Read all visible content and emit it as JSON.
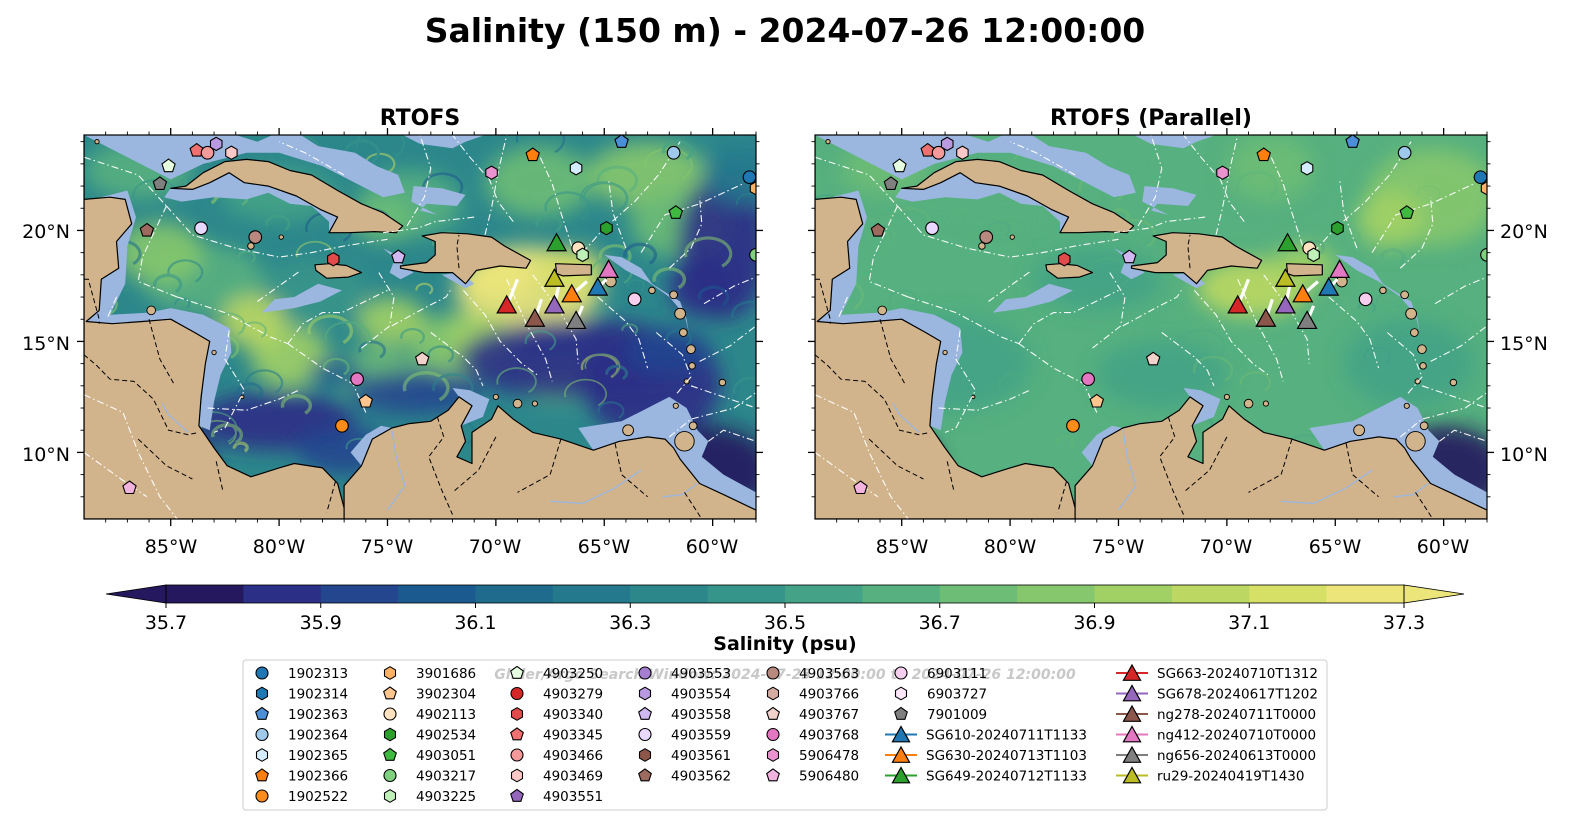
{
  "figure": {
    "title": "Salinity (150 m) - 2024-07-26 12:00:00",
    "watermark": "Glider/Argo Search Window: 2024-07-25 12:00:00 to 2024-07-26 12:00:00"
  },
  "panels": [
    {
      "title": "RTOFS",
      "variant": "main"
    },
    {
      "title": "RTOFS (Parallel)",
      "variant": "parallel"
    }
  ],
  "axes": {
    "lon_ticks": [
      "85°W",
      "80°W",
      "75°W",
      "70°W",
      "65°W",
      "60°W"
    ],
    "lat_ticks": [
      "20°N",
      "15°N",
      "10°N"
    ]
  },
  "colorbar": {
    "label": "Salinity (psu)",
    "min": 35.7,
    "max": 37.3,
    "step": 0.1,
    "tick_labels": [
      "35.7",
      "35.9",
      "36.1",
      "36.3",
      "36.5",
      "36.7",
      "36.9",
      "37.1",
      "37.3"
    ],
    "colors": [
      "#26185e",
      "#2b2f86",
      "#23468f",
      "#1b5a8e",
      "#1f6b8e",
      "#25798d",
      "#2c878b",
      "#36958a",
      "#44a386",
      "#56b07f",
      "#6dbd76",
      "#86c76d",
      "#a1d065",
      "#bcd862",
      "#d6df66",
      "#ece57a"
    ]
  },
  "legend": {
    "columns": [
      [
        {
          "label": "1902313",
          "marker": "circle",
          "color": "#1f77b4"
        },
        {
          "label": "1902314",
          "marker": "hexagon",
          "color": "#1f77b4"
        },
        {
          "label": "1902363",
          "marker": "pentagon",
          "color": "#4a8fd8"
        },
        {
          "label": "1902364",
          "marker": "circle",
          "color": "#9ec9ea"
        },
        {
          "label": "1902365",
          "marker": "hexagon",
          "color": "#d4ecff"
        },
        {
          "label": "1902366",
          "marker": "pentagon",
          "color": "#ff7f0e"
        },
        {
          "label": "1902522",
          "marker": "circle",
          "color": "#ff8c1a"
        }
      ],
      [
        {
          "label": "3901686",
          "marker": "hexagon",
          "color": "#ffb266"
        },
        {
          "label": "3902304",
          "marker": "pentagon",
          "color": "#ffc58f"
        },
        {
          "label": "4902113",
          "marker": "circle",
          "color": "#ffe2c0"
        },
        {
          "label": "4902534",
          "marker": "hexagon",
          "color": "#2ca02c"
        },
        {
          "label": "4903051",
          "marker": "pentagon",
          "color": "#3fb93f"
        },
        {
          "label": "4903217",
          "marker": "circle",
          "color": "#7fd07f"
        },
        {
          "label": "4903225",
          "marker": "hexagon",
          "color": "#bff0b8"
        }
      ],
      [
        {
          "label": "4903250",
          "marker": "pentagon",
          "color": "#e6ffe0"
        },
        {
          "label": "4903279",
          "marker": "circle",
          "color": "#d62728"
        },
        {
          "label": "4903340",
          "marker": "hexagon",
          "color": "#e24b4b"
        },
        {
          "label": "4903345",
          "marker": "pentagon",
          "color": "#ee7070"
        },
        {
          "label": "4903466",
          "marker": "circle",
          "color": "#f59a9a"
        },
        {
          "label": "4903469",
          "marker": "hexagon",
          "color": "#fbc8c8"
        },
        {
          "label": "4903551",
          "marker": "pentagon",
          "color": "#9467bd"
        }
      ],
      [
        {
          "label": "4903553",
          "marker": "circle",
          "color": "#a47fd0"
        },
        {
          "label": "4903554",
          "marker": "hexagon",
          "color": "#b99ae0"
        },
        {
          "label": "4903558",
          "marker": "pentagon",
          "color": "#d0b8f0"
        },
        {
          "label": "4903559",
          "marker": "circle",
          "color": "#ead9ff"
        },
        {
          "label": "4903561",
          "marker": "hexagon",
          "color": "#8c564b"
        },
        {
          "label": "4903562",
          "marker": "pentagon",
          "color": "#9c6a5e"
        }
      ],
      [
        {
          "label": "4903563",
          "marker": "circle",
          "color": "#b88a7f"
        },
        {
          "label": "4903766",
          "marker": "hexagon",
          "color": "#d4aca2"
        },
        {
          "label": "4903767",
          "marker": "pentagon",
          "color": "#f0d2ca"
        },
        {
          "label": "4903768",
          "marker": "circle",
          "color": "#e377c2"
        },
        {
          "label": "5906478",
          "marker": "hexagon",
          "color": "#ea93cf"
        },
        {
          "label": "5906480",
          "marker": "pentagon",
          "color": "#f2b3df"
        }
      ],
      [
        {
          "label": "6903111",
          "marker": "circle",
          "color": "#f7cfee"
        },
        {
          "label": "6903727",
          "marker": "hexagon",
          "color": "#fde6f7"
        },
        {
          "label": "7901009",
          "marker": "pentagon",
          "color": "#7f7f7f"
        },
        {
          "label": "SG610-20240711T1133",
          "marker": "triangle",
          "color": "#1f77b4"
        },
        {
          "label": "SG630-20240713T1103",
          "marker": "triangle",
          "color": "#ff7f0e"
        },
        {
          "label": "SG649-20240712T1133",
          "marker": "triangle",
          "color": "#2ca02c"
        }
      ],
      [
        {
          "label": "SG663-20240710T1312",
          "marker": "triangle",
          "color": "#d62728"
        },
        {
          "label": "SG678-20240617T1202",
          "marker": "triangle",
          "color": "#9467bd"
        },
        {
          "label": "ng278-20240711T0000",
          "marker": "triangle",
          "color": "#8c564b"
        },
        {
          "label": "ng412-20240710T0000",
          "marker": "triangle",
          "color": "#e377c2"
        },
        {
          "label": "ng656-20240613T0000",
          "marker": "triangle",
          "color": "#7f7f7f"
        },
        {
          "label": "ru29-20240419T1430",
          "marker": "triangle",
          "color": "#bcbd22"
        }
      ]
    ]
  },
  "map_colors": {
    "land": "#d2b48c",
    "shelf": "#9bb7e0",
    "coast": "#000000"
  },
  "markers": [
    {
      "id": "1902313",
      "lon": -58.3,
      "lat": 22.4
    },
    {
      "id": "1902314",
      "lon": -57.6,
      "lat": 23.1
    },
    {
      "id": "1902363",
      "lon": -64.2,
      "lat": 24.0
    },
    {
      "id": "1902364",
      "lon": -61.8,
      "lat": 23.5
    },
    {
      "id": "1902365",
      "lon": -66.3,
      "lat": 22.8
    },
    {
      "id": "1902366",
      "lon": -68.3,
      "lat": 23.4
    },
    {
      "id": "1902522",
      "lon": -77.1,
      "lat": 11.2
    },
    {
      "id": "3901686",
      "lon": -58.0,
      "lat": 21.9
    },
    {
      "id": "3902304",
      "lon": -76.0,
      "lat": 12.3
    },
    {
      "id": "4902113",
      "lon": -66.2,
      "lat": 19.2
    },
    {
      "id": "4902534",
      "lon": -64.9,
      "lat": 20.1
    },
    {
      "id": "4903051",
      "lon": -61.7,
      "lat": 20.8
    },
    {
      "id": "4903217",
      "lon": -58.0,
      "lat": 18.9
    },
    {
      "id": "4903225",
      "lon": -66.0,
      "lat": 18.9
    },
    {
      "id": "4903250",
      "lon": -85.1,
      "lat": 22.9
    },
    {
      "id": "4903340",
      "lon": -77.5,
      "lat": 18.7
    },
    {
      "id": "4903345",
      "lon": -83.8,
      "lat": 23.6
    },
    {
      "id": "4903466",
      "lon": -83.3,
      "lat": 23.5
    },
    {
      "id": "4903469",
      "lon": -82.2,
      "lat": 23.5
    },
    {
      "id": "4903554",
      "lon": -82.9,
      "lat": 23.9
    },
    {
      "id": "4903558",
      "lon": -74.5,
      "lat": 18.8
    },
    {
      "id": "4903559",
      "lon": -83.6,
      "lat": 20.1
    },
    {
      "id": "4903562",
      "lon": -86.1,
      "lat": 20.0
    },
    {
      "id": "4903563",
      "lon": -81.1,
      "lat": 19.7
    },
    {
      "id": "4903767",
      "lon": -73.4,
      "lat": 14.2
    },
    {
      "id": "4903768",
      "lon": -76.4,
      "lat": 13.3
    },
    {
      "id": "5906478",
      "lon": -70.2,
      "lat": 22.6
    },
    {
      "id": "5906480",
      "lon": -86.9,
      "lat": 8.4
    },
    {
      "id": "6903111",
      "lon": -63.6,
      "lat": 16.9
    },
    {
      "id": "7901009",
      "lon": -85.5,
      "lat": 22.1
    },
    {
      "id": "SG610-20240711T1133",
      "lon": -65.3,
      "lat": 17.4
    },
    {
      "id": "SG630-20240713T1103",
      "lon": -66.5,
      "lat": 17.1
    },
    {
      "id": "SG649-20240712T1133",
      "lon": -67.2,
      "lat": 19.4
    },
    {
      "id": "SG663-20240710T1312",
      "lon": -69.5,
      "lat": 16.6
    },
    {
      "id": "SG678-20240617T1202",
      "lon": -67.3,
      "lat": 16.6
    },
    {
      "id": "ng278-20240711T0000",
      "lon": -68.2,
      "lat": 16.0
    },
    {
      "id": "ng412-20240710T0000",
      "lon": -64.8,
      "lat": 18.2
    },
    {
      "id": "ng656-20240613T0000",
      "lon": -66.3,
      "lat": 15.9
    },
    {
      "id": "ru29-20240419T1430",
      "lon": -67.3,
      "lat": 17.8
    }
  ]
}
